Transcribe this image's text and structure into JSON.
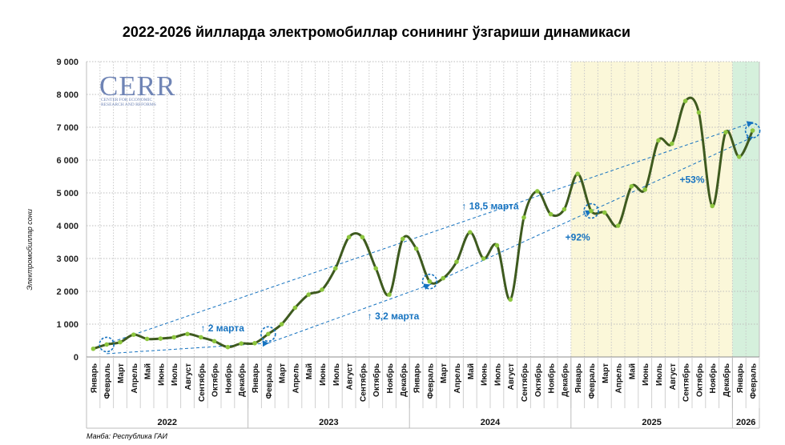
{
  "title": "2022-2026 йилларда электромобиллар сонининг ўзгариши динамикаси",
  "source": "Манба: Республика ГАИ",
  "logo": {
    "main": "CERR",
    "sub1": "CENTER FOR ECONOMIC",
    "sub2": "RESEARCH AND REFORMS",
    "color": "#6f84b5"
  },
  "chart_data": {
    "type": "line",
    "ylabel": "Электромобиллар сони",
    "ylim": [
      0,
      9000
    ],
    "yticks": [
      0,
      1000,
      2000,
      3000,
      4000,
      5000,
      6000,
      7000,
      8000,
      9000
    ],
    "ytick_labels": [
      "0",
      "1 000",
      "2 000",
      "3 000",
      "4 000",
      "5 000",
      "6 000",
      "7 000",
      "8 000",
      "9 000"
    ],
    "categories": [
      "Январь",
      "Февраль",
      "Март",
      "Апрель",
      "Май",
      "Июнь",
      "Июль",
      "Август",
      "Сентябрь",
      "Октябрь",
      "Ноябрь",
      "Декабрь",
      "Январь",
      "Февраль",
      "Март",
      "Апрель",
      "Май",
      "Июнь",
      "Июль",
      "Август",
      "Сентябрь",
      "Октябрь",
      "Ноябрь",
      "Декабрь",
      "Январь",
      "Февраль",
      "Март",
      "Апрель",
      "Май",
      "Июнь",
      "Июль",
      "Август",
      "Сентябрь",
      "Октябрь",
      "Ноябрь",
      "Декабрь",
      "Январь",
      "Февраль",
      "Март",
      "Апрель",
      "Май",
      "Июнь",
      "Июль",
      "Август",
      "Сентябрь",
      "Октябрь",
      "Ноябрь",
      "Декабрь",
      "Январь",
      "Февраль"
    ],
    "years": [
      {
        "label": "2022",
        "start": 0,
        "count": 12
      },
      {
        "label": "2023",
        "start": 12,
        "count": 12
      },
      {
        "label": "2024",
        "start": 24,
        "count": 12
      },
      {
        "label": "2025",
        "start": 36,
        "count": 12
      },
      {
        "label": "2026",
        "start": 48,
        "count": 2
      }
    ],
    "series": [
      {
        "values": [
          250,
          380,
          450,
          680,
          550,
          560,
          600,
          700,
          600,
          480,
          300,
          410,
          420,
          700,
          1000,
          1500,
          1900,
          2050,
          2700,
          3650,
          3650,
          2700,
          1900,
          3600,
          3300,
          2300,
          2400,
          2900,
          3800,
          3000,
          3400,
          1750,
          4250,
          5050,
          4350,
          4500,
          5580,
          4450,
          4400,
          4000,
          5200,
          5100,
          6600,
          6500,
          7800,
          7450,
          4600,
          6850,
          6100,
          6900
        ],
        "color": "#3e5a1f",
        "marker_color": "#8dc63f"
      }
    ],
    "highlight_regions": [
      {
        "start": 36,
        "end": 47,
        "color": "#fbf7d9"
      },
      {
        "start": 48,
        "end": 49,
        "color": "#d5f0dc"
      }
    ],
    "circled_points": [
      1,
      13,
      25,
      37,
      49
    ],
    "trend_arrows": [
      {
        "from": 1,
        "to": 49,
        "from_value": 400,
        "to_value": 7150,
        "label": "↑ 18,5 марта",
        "label_at": {
          "index": 29.5,
          "value": 4500
        }
      },
      {
        "from": 1,
        "to": 13,
        "from_value": 100,
        "to_value": 420,
        "label": "↑ 2 марта",
        "label_at": {
          "index": 9.6,
          "value": 780
        }
      },
      {
        "from": 13,
        "to": 25,
        "from_value": 420,
        "to_value": 2200,
        "label": "↑ 3,2 марта",
        "label_at": {
          "index": 22.3,
          "value": 1150
        }
      },
      {
        "from": 25,
        "to": 37,
        "from_value": 2200,
        "to_value": 4450,
        "label": "+92%",
        "label_at": {
          "index": 36.0,
          "value": 3550
        }
      },
      {
        "from": 37,
        "to": 49,
        "from_value": 4450,
        "to_value": 6700,
        "label": "+53%",
        "label_at": {
          "index": 44.5,
          "value": 5300
        }
      }
    ],
    "annotation_color": "#1673c0",
    "grid": true
  }
}
